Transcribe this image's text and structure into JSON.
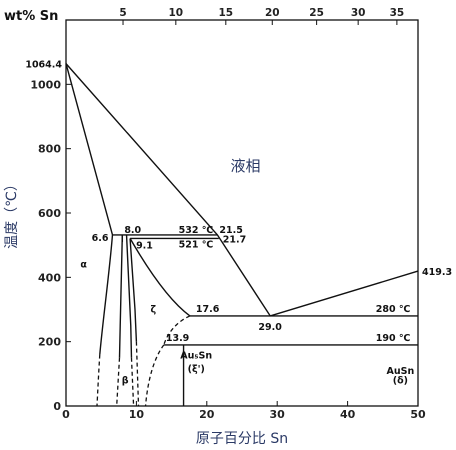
{
  "chart_data": {
    "type": "phase-diagram",
    "xlabel": "原子百分比  Sn",
    "ylabel": "温度（℃）",
    "top_axis_title": "wt% Sn",
    "xlim": [
      0,
      50
    ],
    "ylim": [
      0,
      1200
    ],
    "x_ticks": [
      "0",
      "10",
      "20",
      "30",
      "40",
      "50"
    ],
    "y_ticks": [
      "0",
      "200",
      "400",
      "600",
      "800",
      "1000"
    ],
    "top_ticks": [
      {
        "wt": 5,
        "at": 8.1,
        "label": "5"
      },
      {
        "wt": 10,
        "at": 15.6,
        "label": "10"
      },
      {
        "wt": 15,
        "at": 22.7,
        "label": "15"
      },
      {
        "wt": 20,
        "at": 29.3,
        "label": "20"
      },
      {
        "wt": 25,
        "at": 35.6,
        "label": "25"
      },
      {
        "wt": 30,
        "at": 41.5,
        "label": "30"
      },
      {
        "wt": 35,
        "at": 47.0,
        "label": "35"
      }
    ],
    "liquid_label": "液相",
    "labels": [
      {
        "text": "1064.4",
        "x": 0,
        "y": 1064.4
      },
      {
        "text": "419.3",
        "x": 50,
        "y": 419.3
      },
      {
        "text": "6.6",
        "x": 6.6,
        "y": 532
      },
      {
        "text": "8.0",
        "x": 8.0,
        "y": 532
      },
      {
        "text": "532 ℃",
        "x": 16,
        "y": 532
      },
      {
        "text": "21.5",
        "x": 21.5,
        "y": 532
      },
      {
        "text": "9.1",
        "x": 9.1,
        "y": 521
      },
      {
        "text": "521 ℃",
        "x": 16,
        "y": 521
      },
      {
        "text": "21.7",
        "x": 21.7,
        "y": 521
      },
      {
        "text": "17.6",
        "x": 17.6,
        "y": 280
      },
      {
        "text": "29.0",
        "x": 29.0,
        "y": 280
      },
      {
        "text": "280 ℃",
        "x": 44,
        "y": 280
      },
      {
        "text": "13.9",
        "x": 13.9,
        "y": 190
      },
      {
        "text": "190 ℃",
        "x": 44,
        "y": 190
      }
    ],
    "phase_labels": {
      "alpha": "α",
      "beta": "β",
      "zeta": "ζ",
      "au5sn": "Au₅Sn",
      "zeta_prime": "(ξ')",
      "ausn": "AuSn",
      "delta": "(δ)"
    },
    "series": [
      {
        "points": [
          [
            0,
            1064.4
          ],
          [
            6.6,
            532
          ]
        ]
      },
      {
        "points": [
          [
            0,
            1064.4
          ],
          [
            21.5,
            532
          ],
          [
            29.0,
            280
          ]
        ]
      },
      {
        "points": [
          [
            29.0,
            280
          ],
          [
            50,
            419.3
          ]
        ]
      },
      {
        "points": [
          [
            6.6,
            532
          ],
          [
            21.5,
            532
          ]
        ]
      },
      {
        "points": [
          [
            9.1,
            521
          ],
          [
            21.7,
            521
          ]
        ]
      },
      {
        "points": [
          [
            17.6,
            280
          ],
          [
            50,
            280
          ]
        ]
      },
      {
        "points": [
          [
            13.9,
            190
          ],
          [
            50,
            190
          ]
        ]
      }
    ]
  }
}
